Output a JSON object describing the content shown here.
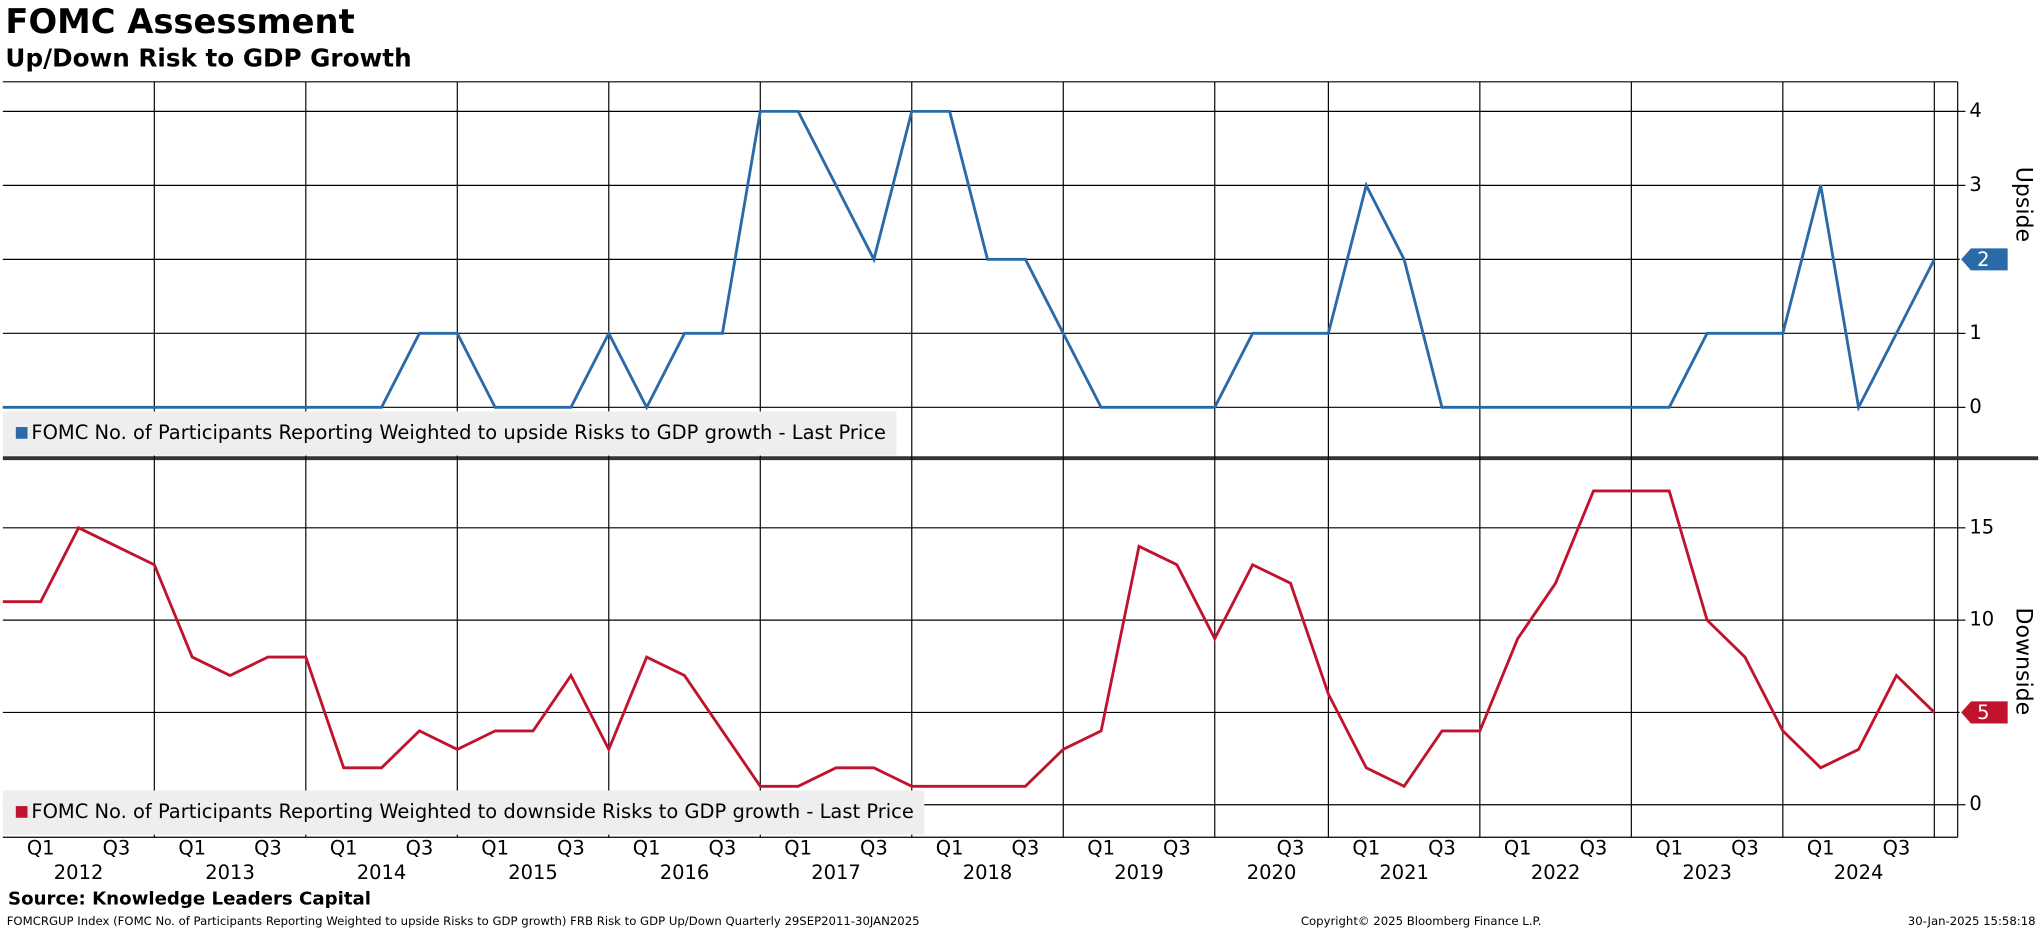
{
  "title": "FOMC Assessment",
  "subtitle": "Up/Down Risk to GDP Growth",
  "x_axis": {
    "categories": [
      null,
      "Q1",
      null,
      "Q3",
      null,
      "Q1",
      null,
      "Q3",
      null,
      "Q1",
      null,
      "Q3",
      null,
      "Q1",
      null,
      "Q3",
      null,
      "Q1",
      null,
      "Q3",
      null,
      "Q1",
      null,
      "Q3",
      null,
      "Q1",
      null,
      "Q3",
      null,
      "Q1",
      null,
      "Q3",
      null,
      null,
      "Q3",
      null,
      "Q1",
      null,
      "Q3",
      null,
      "Q1",
      null,
      "Q3",
      null,
      "Q1",
      null,
      "Q3",
      null,
      "Q1",
      null,
      "Q3",
      null
    ],
    "year_groups": [
      {
        "label": "2012",
        "count": 4
      },
      {
        "label": "2013",
        "count": 4
      },
      {
        "label": "2014",
        "count": 4
      },
      {
        "label": "2015",
        "count": 4
      },
      {
        "label": "2016",
        "count": 4
      },
      {
        "label": "2017",
        "count": 4
      },
      {
        "label": "2018",
        "count": 4
      },
      {
        "label": "2019",
        "count": 4
      },
      {
        "label": "2020",
        "count": 3
      },
      {
        "label": "2021",
        "count": 4
      },
      {
        "label": "2022",
        "count": 4
      },
      {
        "label": "2023",
        "count": 4
      },
      {
        "label": "2024",
        "count": 4
      }
    ]
  },
  "chart_data": [
    {
      "type": "line",
      "axis_title": "Upside",
      "ylim": [
        -0.67,
        4.4
      ],
      "yticks": [
        0,
        1,
        2,
        3,
        4
      ],
      "series": [
        {
          "name": "FOMC No. of Participants Reporting Weighted to upside Risks to GDP growth - Last Price",
          "color": "#2a6aa8",
          "values": [
            0,
            0,
            0,
            0,
            0,
            0,
            0,
            0,
            0,
            0,
            0,
            1,
            1,
            0,
            0,
            0,
            1,
            0,
            1,
            1,
            4,
            4,
            3,
            2,
            4,
            4,
            2,
            2,
            1,
            0,
            0,
            0,
            0,
            1,
            1,
            1,
            3,
            2,
            0,
            0,
            0,
            0,
            0,
            0,
            0,
            1,
            1,
            1,
            3,
            0,
            1,
            2
          ]
        }
      ]
    },
    {
      "type": "line",
      "axis_title": "Downside",
      "ylim": [
        -1.76,
        18.7
      ],
      "yticks": [
        0,
        5,
        10,
        15
      ],
      "series": [
        {
          "name": "FOMC No. of Participants Reporting Weighted to downside Risks to GDP growth - Last Price",
          "color": "#c0142e",
          "values": [
            11,
            11,
            15,
            14,
            13,
            8,
            7,
            8,
            8,
            2,
            2,
            4,
            3,
            4,
            4,
            7,
            3,
            8,
            7,
            4,
            1,
            1,
            2,
            2,
            1,
            1,
            1,
            1,
            3,
            4,
            14,
            13,
            9,
            13,
            12,
            6,
            2,
            1,
            4,
            4,
            9,
            12,
            17,
            17,
            17,
            10,
            8,
            4,
            2,
            3,
            7,
            5
          ]
        }
      ]
    }
  ],
  "footer": {
    "source": "Source: Knowledge Leaders Capital",
    "ticker": "FOMCRGUP Index (FOMC No.  of Participants Reporting Weighted to upside Risks to GDP growth) FRB Risk to GDP Up/Down  Quarterly 29SEP2011-30JAN2025",
    "copyright": "Copyright© 2025 Bloomberg Finance L.P.",
    "timestamp": "30-Jan-2025 15:58:18"
  }
}
